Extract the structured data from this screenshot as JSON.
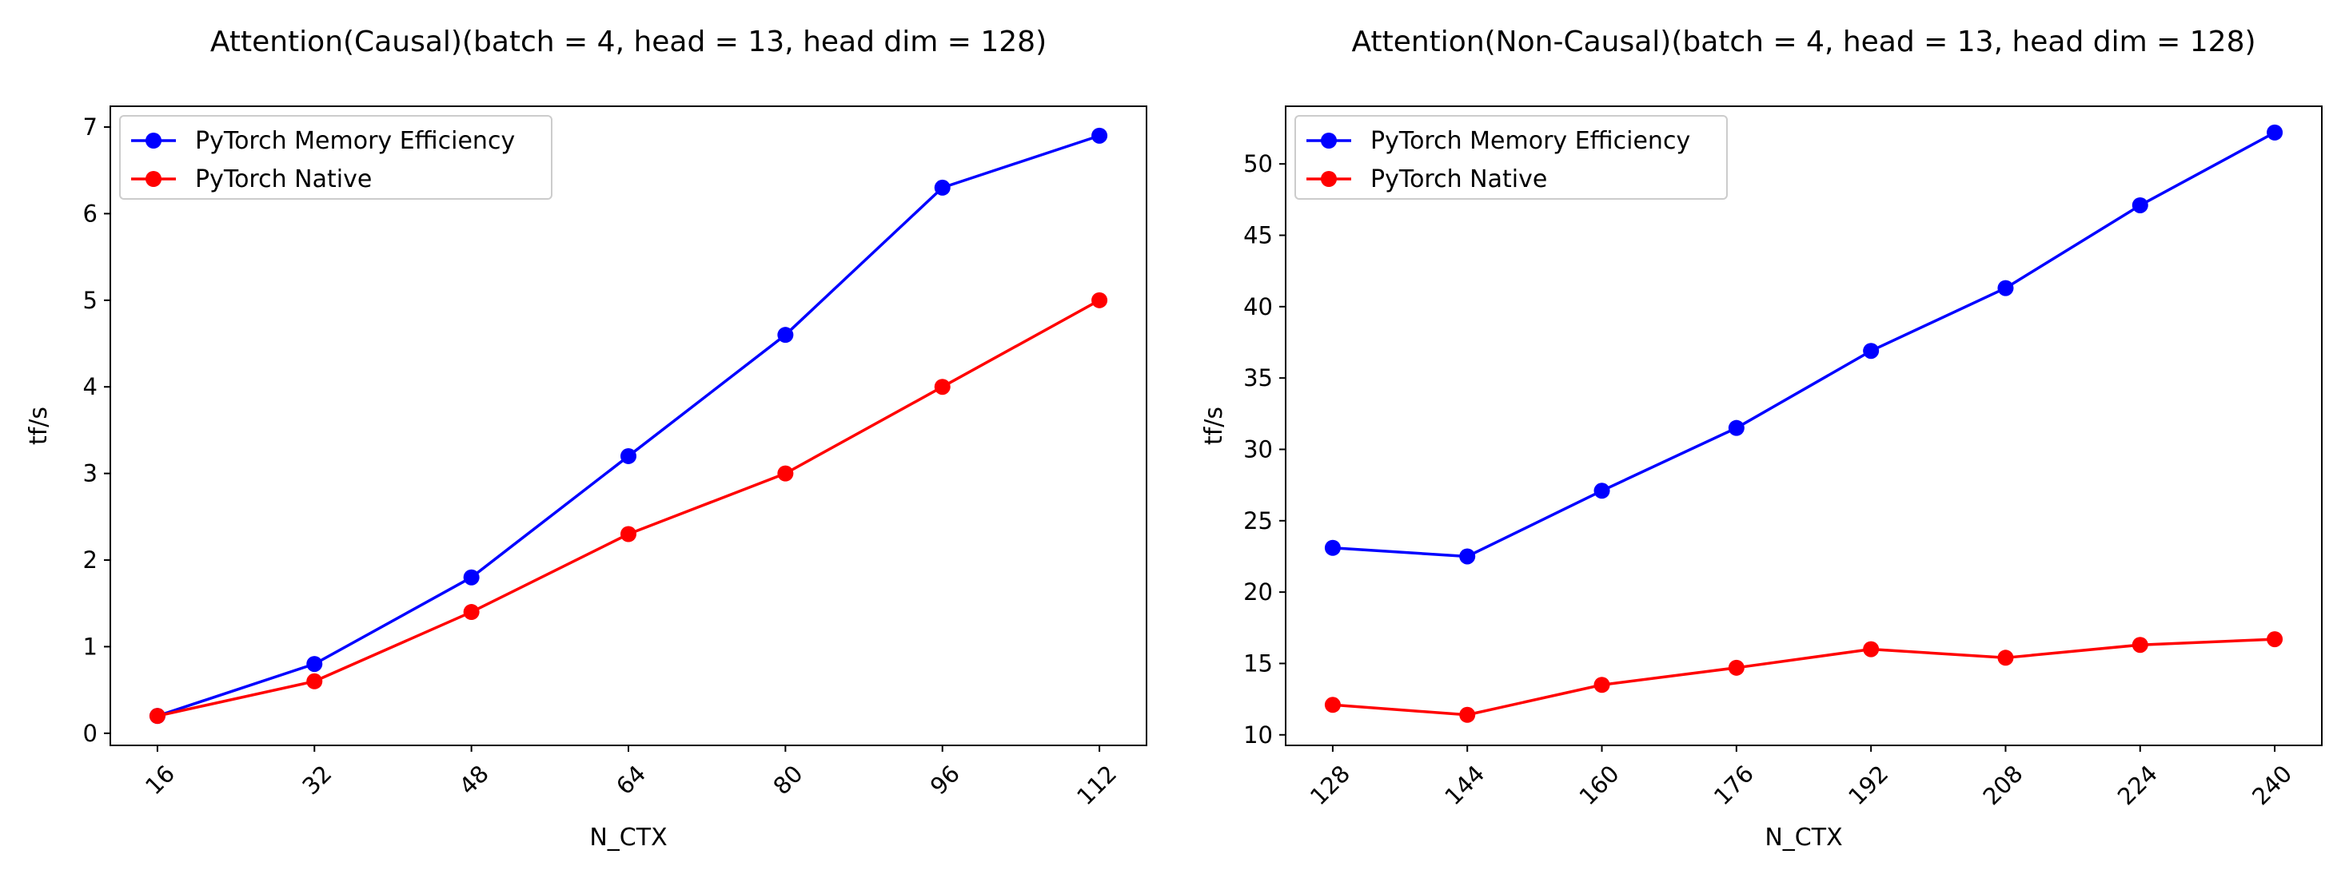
{
  "chart_data": [
    {
      "type": "line",
      "title": "Attention(Causal)(batch = 4, head = 13, head dim = 128)",
      "xlabel": "N_CTX",
      "ylabel": "tf/s",
      "x": [
        16,
        32,
        48,
        64,
        80,
        96,
        112
      ],
      "xlim": [
        11.2,
        116.8
      ],
      "ylim": [
        -0.14,
        7.24
      ],
      "yticks": [
        0,
        1,
        2,
        3,
        4,
        5,
        6,
        7
      ],
      "grid": false,
      "legend_position": "top-left",
      "series": [
        {
          "name": "PyTorch Memory Efficiency",
          "color": "#0000ff",
          "marker": "circle",
          "values": [
            0.2,
            0.8,
            1.8,
            3.2,
            4.6,
            6.3,
            6.9
          ]
        },
        {
          "name": "PyTorch Native",
          "color": "#ff0000",
          "marker": "circle",
          "values": [
            0.2,
            0.6,
            1.4,
            2.3,
            3.0,
            4.0,
            5.0
          ]
        }
      ]
    },
    {
      "type": "line",
      "title": "Attention(Non-Causal)(batch = 4, head = 13, head dim = 128)",
      "xlabel": "N_CTX",
      "ylabel": "tf/s",
      "x": [
        128,
        144,
        160,
        176,
        192,
        208,
        224,
        240
      ],
      "xlim": [
        122.4,
        245.6
      ],
      "ylim": [
        9.26,
        54.04
      ],
      "yticks": [
        10,
        15,
        20,
        25,
        30,
        35,
        40,
        45,
        50
      ],
      "grid": false,
      "legend_position": "top-left",
      "series": [
        {
          "name": "PyTorch Memory Efficiency",
          "color": "#0000ff",
          "marker": "circle",
          "values": [
            23.1,
            22.5,
            27.1,
            31.5,
            36.9,
            41.3,
            47.1,
            52.2
          ]
        },
        {
          "name": "PyTorch Native",
          "color": "#ff0000",
          "marker": "circle",
          "values": [
            12.1,
            11.4,
            13.5,
            14.7,
            16.0,
            15.4,
            16.3,
            16.7
          ]
        }
      ]
    }
  ]
}
